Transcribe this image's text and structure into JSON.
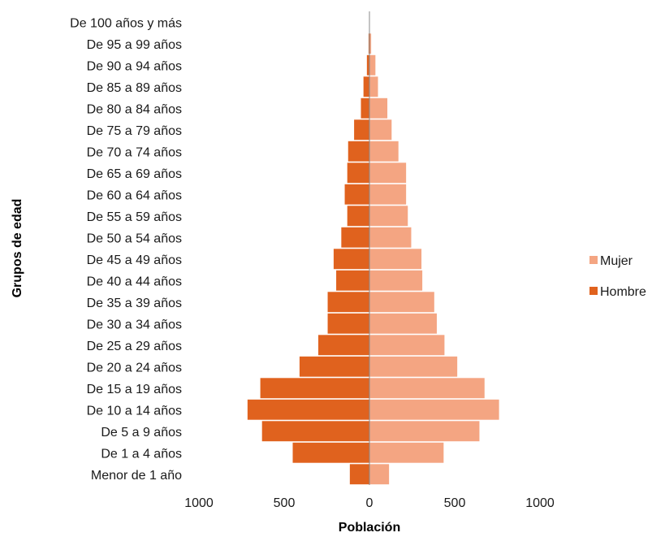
{
  "chart_data": {
    "type": "bar",
    "orientation": "horizontal",
    "layout": "population-pyramid",
    "categories": [
      "Menor de 1 año",
      "De 1 a 4 años",
      "De 5 a 9 años",
      "De 10 a 14 años",
      "De 15 a 19 años",
      "De 20 a 24 años",
      "De 25 a 29 años",
      "De 30 a 34 años",
      "De 35 a 39 años",
      "De 40 a 44 años",
      "De 45 a 49 años",
      "De 50 a 54 años",
      "De 55 a 59 años",
      "De 60 a 64 años",
      "De 65 a 69 años",
      "De 70 a 74 años",
      "De 75 a 79 años",
      "De 80 a 84 años",
      "De 85 a 89 años",
      "De 90 a 94 años",
      "De 95 a 99 años",
      "De 100 años y más"
    ],
    "series": [
      {
        "name": "Mujer",
        "color": "#F4A582",
        "side": "right",
        "values": [
          115,
          435,
          645,
          760,
          675,
          515,
          440,
          395,
          380,
          310,
          305,
          245,
          225,
          215,
          215,
          170,
          130,
          105,
          50,
          35,
          10,
          0
        ]
      },
      {
        "name": "Hombre",
        "color": "#E0621E",
        "side": "left",
        "values": [
          115,
          450,
          630,
          715,
          640,
          410,
          300,
          245,
          245,
          195,
          210,
          165,
          130,
          145,
          130,
          125,
          90,
          50,
          35,
          15,
          5,
          0
        ]
      }
    ],
    "xlabel": "Población",
    "ylabel": "Grupos de edad",
    "xlim": [
      -1000,
      1000
    ],
    "xticks": [
      {
        "value": -1000,
        "label": "1000"
      },
      {
        "value": -500,
        "label": "500"
      },
      {
        "value": 0,
        "label": "0"
      },
      {
        "value": 500,
        "label": "500"
      },
      {
        "value": 1000,
        "label": "1000"
      }
    ],
    "legend": {
      "position": "right",
      "entries": [
        {
          "label": "Mujer",
          "color": "#F4A582"
        },
        {
          "label": "Hombre",
          "color": "#E0621E"
        }
      ]
    },
    "grid": false
  }
}
